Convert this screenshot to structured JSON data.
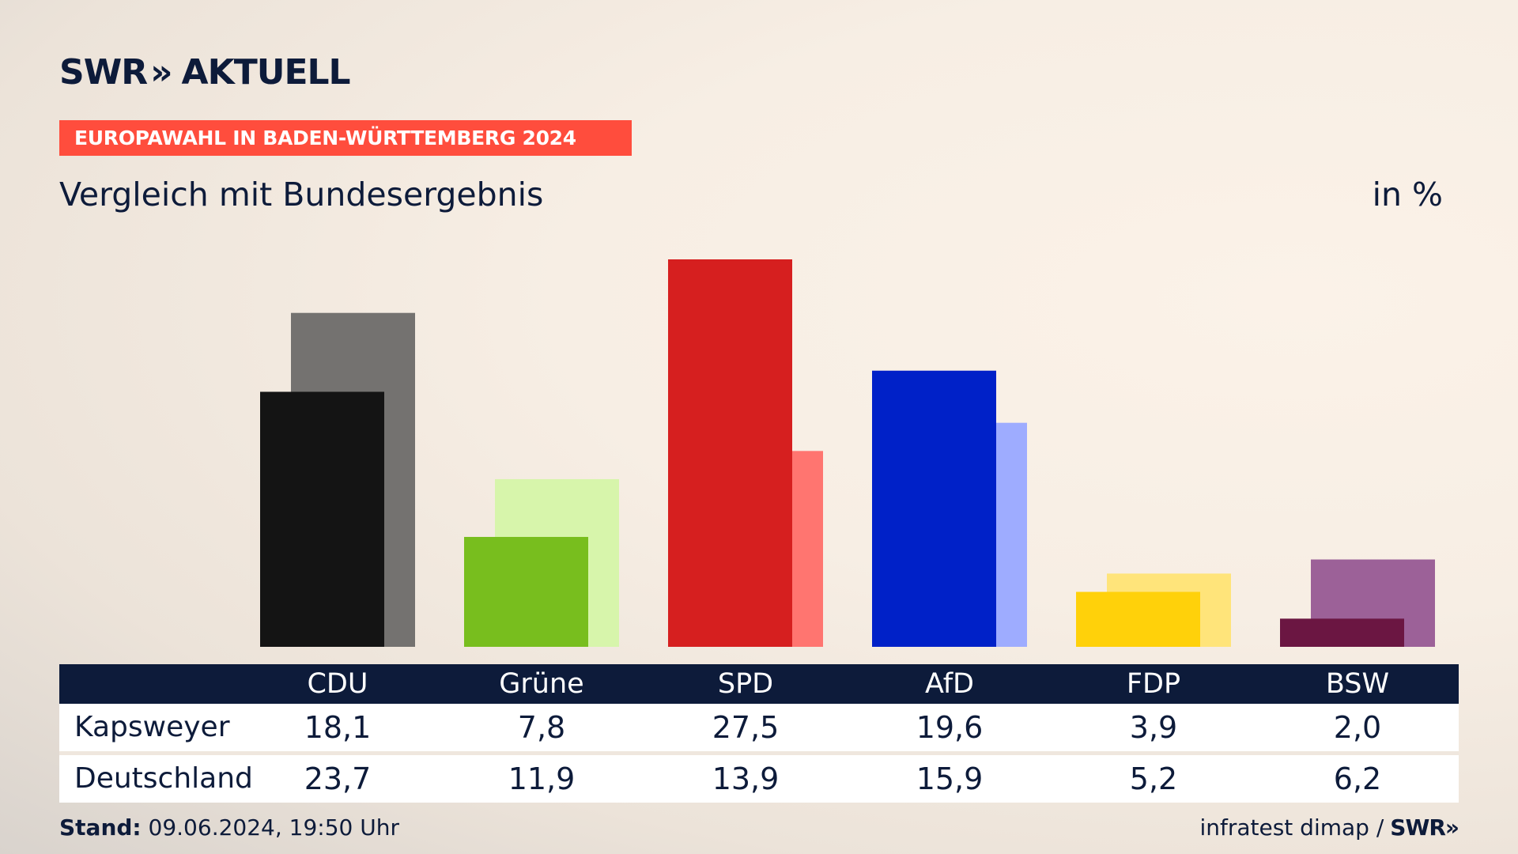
{
  "brand": {
    "name_left": "SWR",
    "chevrons": "»",
    "name_right": "AKTUELL"
  },
  "ribbon": "EUROPAWAHL IN BADEN-WÜRTTEMBERG 2024",
  "subtitle": "Vergleich mit Bundesergebnis",
  "unit": "in %",
  "table": {
    "row_labels": [
      "Kapsweyer",
      "Deutschland"
    ]
  },
  "footer": {
    "stand_label": "Stand:",
    "stand_value": "09.06.2024, 19:50 Uhr",
    "source": "infratest dimap",
    "separator": "/",
    "swr": "SWR",
    "swr_chevrons": "»"
  },
  "chart_data": {
    "type": "bar",
    "categories": [
      "CDU",
      "Grüne",
      "SPD",
      "AfD",
      "FDP",
      "BSW"
    ],
    "series": [
      {
        "name": "Kapsweyer",
        "values": [
          18.1,
          7.8,
          27.5,
          19.6,
          3.9,
          2.0
        ]
      },
      {
        "name": "Deutschland",
        "values": [
          23.7,
          11.9,
          13.9,
          15.9,
          5.2,
          6.2
        ]
      }
    ],
    "colors": {
      "Kapsweyer": [
        "#141414",
        "#78be1e",
        "#d61f1f",
        "#0021c8",
        "#ffd10a",
        "#6b1642"
      ],
      "Deutschland": [
        "#747270",
        "#d7f5ab",
        "#ff7570",
        "#9eacff",
        "#ffe47a",
        "#9c6198"
      ]
    },
    "ylim": [
      0,
      27.5
    ],
    "grid": false
  }
}
